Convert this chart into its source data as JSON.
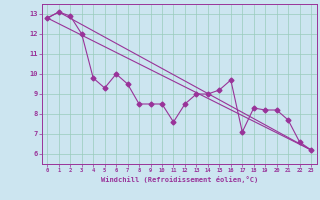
{
  "title": "",
  "xlabel": "Windchill (Refroidissement éolien,°C)",
  "ylabel": "",
  "bg_color": "#cce5f0",
  "grid_color": "#99ccbb",
  "line_color": "#993399",
  "ylim": [
    5.5,
    13.5
  ],
  "xlim": [
    -0.5,
    23.5
  ],
  "yticks": [
    6,
    7,
    8,
    9,
    10,
    11,
    12,
    13
  ],
  "xticks": [
    0,
    1,
    2,
    3,
    4,
    5,
    6,
    7,
    8,
    9,
    10,
    11,
    12,
    13,
    14,
    15,
    16,
    17,
    18,
    19,
    20,
    21,
    22,
    23
  ],
  "line1_x": [
    0,
    1,
    2,
    3,
    4,
    5,
    6,
    7,
    8,
    9,
    10,
    11,
    12,
    13,
    14,
    15,
    16,
    17,
    18,
    19,
    20,
    21,
    22,
    23
  ],
  "line1_y": [
    12.8,
    13.1,
    12.9,
    12.0,
    9.8,
    9.3,
    10.0,
    9.5,
    8.5,
    8.5,
    8.5,
    7.6,
    8.5,
    9.0,
    9.0,
    9.2,
    9.7,
    7.1,
    8.3,
    8.2,
    8.2,
    7.7,
    6.6,
    6.2
  ],
  "line2_x": [
    0,
    23
  ],
  "line2_y": [
    12.8,
    6.2
  ],
  "line3_x": [
    0,
    1,
    23
  ],
  "line3_y": [
    12.8,
    13.1,
    6.2
  ],
  "marker": "D",
  "markersize": 2.5,
  "linewidth": 0.8
}
